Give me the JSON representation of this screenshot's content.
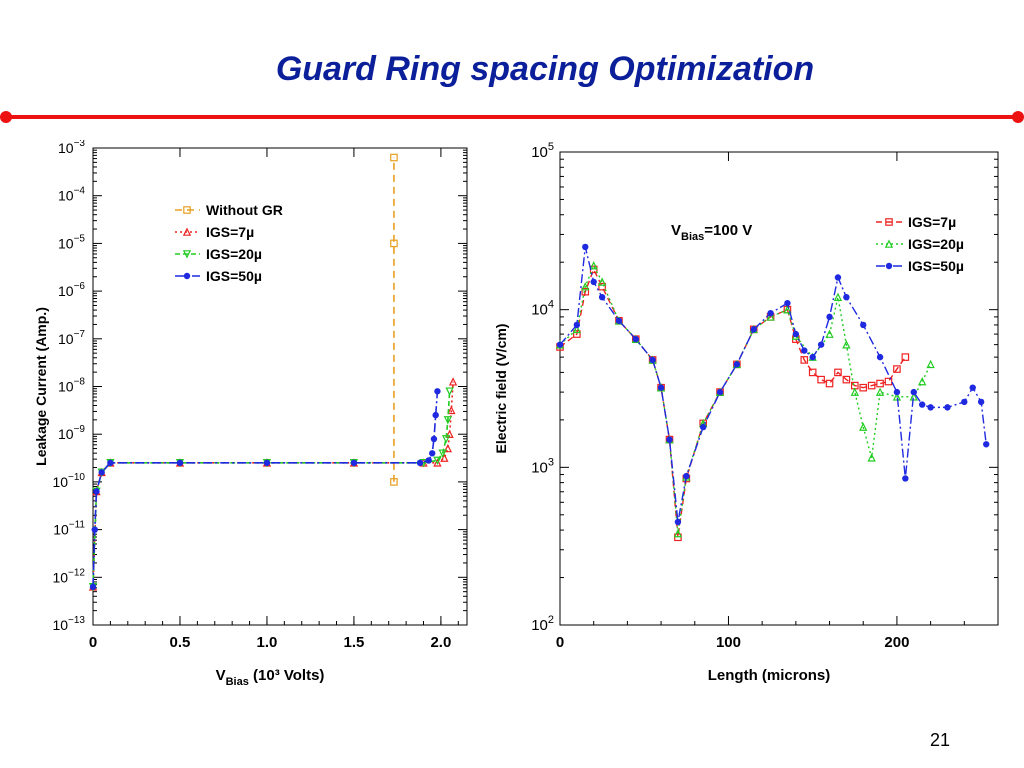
{
  "slide": {
    "title": "Guard Ring spacing Optimization",
    "page_number": "21",
    "accent_color": "#ee1111",
    "title_color": "#0c1f9a"
  },
  "chart_data": [
    {
      "type": "line",
      "ylabel": "Leakage Current (Amp.)",
      "xlabel_main": "V",
      "xlabel_sub": "Bias",
      "xlabel_rest": "(10³ Volts)",
      "x_scale": "linear",
      "y_scale": "log",
      "xlim": [
        0,
        2.15
      ],
      "ylim_exp": [
        -13,
        -3
      ],
      "x_ticks": [
        0,
        0.5,
        1.0,
        1.5,
        2.0
      ],
      "x_tick_labels": [
        "0",
        "0.5",
        "1.0",
        "1.5",
        "2.0"
      ],
      "y_tick_exponents": [
        -13,
        -12,
        -11,
        -10,
        -9,
        -8,
        -7,
        -6,
        -5,
        -4,
        -3
      ],
      "legend_position": "top-left",
      "series": [
        {
          "name": "Without GR",
          "color": "#e8a020",
          "marker": "square",
          "dash": "7,5",
          "x": [
            1.73,
            1.73,
            1.73
          ],
          "y_exp": [
            -10.0,
            -5.0,
            -3.2
          ]
        },
        {
          "name": "IGS=7µ",
          "color": "#ee2222",
          "marker": "triangle-up",
          "dash": "2,3",
          "x": [
            0,
            0.02,
            0.05,
            0.1,
            0.5,
            1.0,
            1.5,
            1.9,
            1.98,
            2.02,
            2.04,
            2.05,
            2.06,
            2.07
          ],
          "y_exp": [
            -12.2,
            -10.2,
            -9.8,
            -9.6,
            -9.6,
            -9.6,
            -9.6,
            -9.6,
            -9.6,
            -9.5,
            -9.3,
            -9.0,
            -8.5,
            -7.9
          ]
        },
        {
          "name": "IGS=20µ",
          "color": "#22cc22",
          "marker": "triangle-down",
          "dash": "5,3",
          "x": [
            0,
            0.02,
            0.05,
            0.1,
            0.5,
            1.0,
            1.5,
            1.9,
            1.98,
            2.01,
            2.03,
            2.04,
            2.05
          ],
          "y_exp": [
            -12.2,
            -10.2,
            -9.8,
            -9.6,
            -9.6,
            -9.6,
            -9.6,
            -9.6,
            -9.55,
            -9.4,
            -9.1,
            -8.7,
            -8.1
          ]
        },
        {
          "name": "IGS=50µ",
          "color": "#1f2ae0",
          "marker": "circle",
          "dash": "9,3,2,3",
          "x": [
            0,
            0.01,
            0.02,
            0.05,
            0.1,
            0.5,
            1.0,
            1.5,
            1.88,
            1.93,
            1.95,
            1.96,
            1.97,
            1.98
          ],
          "y_exp": [
            -12.2,
            -11.0,
            -10.2,
            -9.8,
            -9.6,
            -9.6,
            -9.6,
            -9.6,
            -9.6,
            -9.55,
            -9.4,
            -9.1,
            -8.6,
            -8.1
          ]
        }
      ]
    },
    {
      "type": "line",
      "ylabel": "Electric field (V/cm)",
      "xlabel": "Length (microns)",
      "annotation_main": "V",
      "annotation_sub": "Bias",
      "annotation_rest": "=100 V",
      "x_scale": "linear",
      "y_scale": "log",
      "xlim": [
        0,
        260
      ],
      "ylim_exp": [
        2,
        5
      ],
      "x_ticks": [
        0,
        100,
        200
      ],
      "x_tick_labels": [
        "0",
        "100",
        "200"
      ],
      "y_tick_exponents": [
        2,
        3,
        4,
        5
      ],
      "legend_position": "top-right",
      "series": [
        {
          "name": "IGS=7µ",
          "color": "#ee2222",
          "marker": "square",
          "dash": "6,4",
          "x": [
            0,
            10,
            15,
            20,
            25,
            35,
            45,
            55,
            60,
            65,
            70,
            75,
            85,
            95,
            105,
            115,
            125,
            135,
            140,
            145,
            150,
            155,
            160,
            165,
            170,
            175,
            180,
            185,
            190,
            195,
            200,
            205
          ],
          "y": [
            5800,
            7000,
            13000,
            18000,
            14000,
            8500,
            6500,
            4800,
            3200,
            1500,
            360,
            850,
            1900,
            3000,
            4500,
            7500,
            9000,
            10000,
            6500,
            4800,
            4000,
            3600,
            3400,
            4000,
            3600,
            3300,
            3200,
            3300,
            3400,
            3500,
            4200,
            5000
          ]
        },
        {
          "name": "IGS=20µ",
          "color": "#22cc22",
          "marker": "triangle-up",
          "dash": "2,3",
          "x": [
            0,
            10,
            15,
            20,
            25,
            35,
            45,
            55,
            60,
            65,
            70,
            75,
            85,
            95,
            105,
            115,
            125,
            135,
            140,
            150,
            160,
            165,
            170,
            175,
            180,
            185,
            190,
            200,
            210,
            215,
            220
          ],
          "y": [
            6000,
            7500,
            14000,
            19000,
            15000,
            8500,
            6500,
            4800,
            3200,
            1500,
            380,
            870,
            1900,
            3000,
            4500,
            7500,
            9000,
            10000,
            6800,
            5000,
            7000,
            12000,
            6000,
            3000,
            1800,
            1150,
            3000,
            2800,
            2800,
            3500,
            4500
          ]
        },
        {
          "name": "IGS=50µ",
          "color": "#1f2ae0",
          "marker": "circle",
          "dash": "9,3,2,3",
          "x": [
            0,
            10,
            15,
            20,
            25,
            35,
            45,
            55,
            60,
            65,
            70,
            75,
            85,
            95,
            105,
            115,
            125,
            135,
            140,
            145,
            150,
            155,
            160,
            165,
            170,
            180,
            190,
            200,
            205,
            210,
            215,
            220,
            230,
            240,
            245,
            250,
            253
          ],
          "y": [
            6000,
            8000,
            25000,
            15000,
            12000,
            8500,
            6500,
            4800,
            3200,
            1500,
            450,
            880,
            1800,
            3000,
            4500,
            7500,
            9500,
            11000,
            7000,
            5500,
            5000,
            6000,
            9000,
            16000,
            12000,
            8000,
            5000,
            3000,
            850,
            3000,
            2500,
            2400,
            2400,
            2600,
            3200,
            2600,
            1400
          ]
        }
      ]
    }
  ]
}
